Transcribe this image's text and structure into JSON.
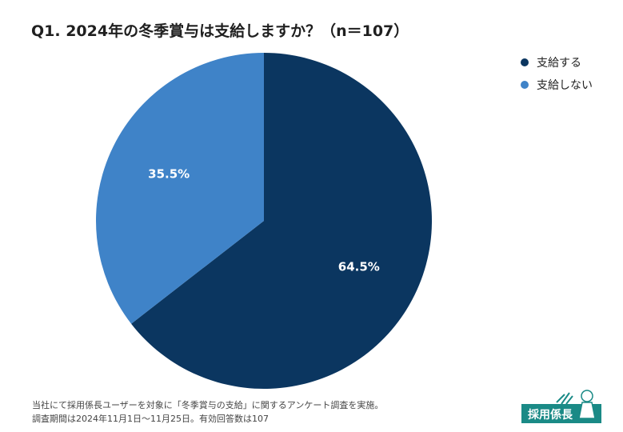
{
  "title": "Q1. 2024年の冬季賞与は支給しますか？（n＝107）",
  "chart_data": {
    "type": "pie",
    "title": "Q1. 2024年の冬季賞与は支給しますか？（n＝107）",
    "n": 107,
    "start_angle_deg": 0,
    "direction": "clockwise",
    "legend_position": "top-right",
    "slices": [
      {
        "name": "支給する",
        "value": 64.5,
        "label": "64.5%",
        "color": "#0b3660"
      },
      {
        "name": "支給しない",
        "value": 35.5,
        "label": "35.5%",
        "color": "#3f83c8"
      }
    ]
  },
  "legend": [
    {
      "label": "支給する",
      "color": "#0b3660"
    },
    {
      "label": "支給しない",
      "color": "#3f83c8"
    }
  ],
  "footnote": {
    "line1": "当社にて採用係長ユーザーを対象に「冬季賞与の支給」に関するアンケート調査を実施。",
    "line2": "調査期間は2024年11月1日〜11月25日。有効回答数は107"
  },
  "logo": {
    "text": "採用係長",
    "color": "#1a8a86"
  }
}
